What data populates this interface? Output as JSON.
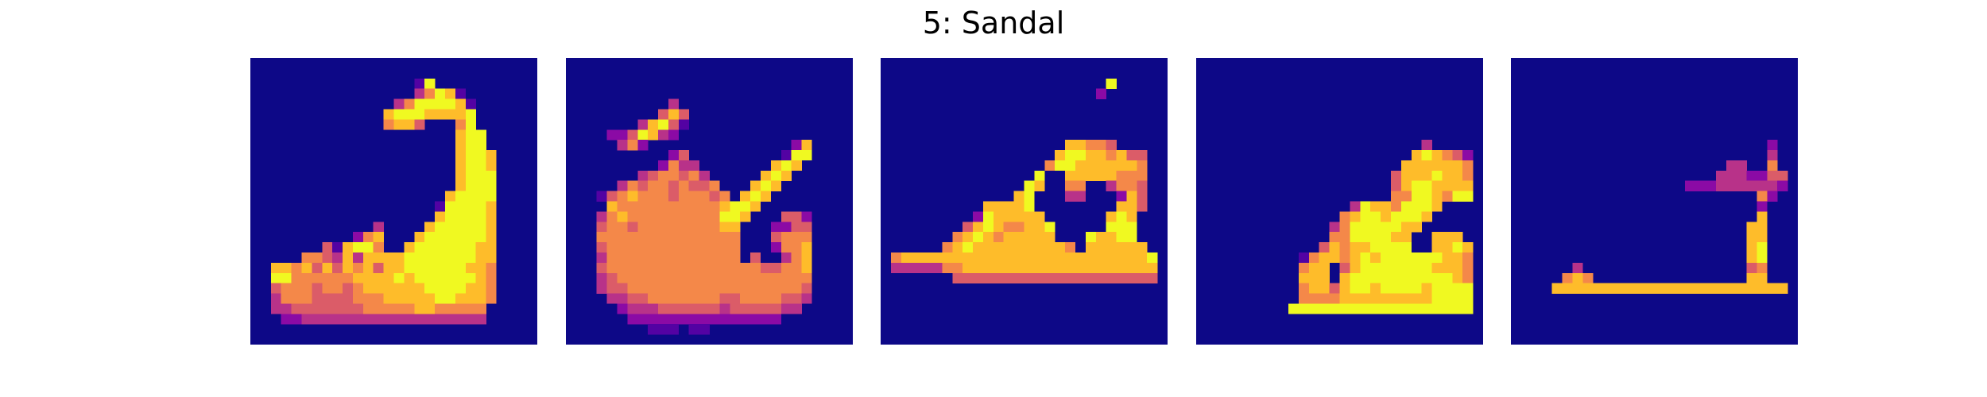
{
  "figure": {
    "title": "5: Sandal"
  },
  "colormap": {
    "name": "plasma",
    "stops": [
      "#0d0887",
      "#5302a3",
      "#8b0aa5",
      "#b83289",
      "#db5c68",
      "#f48849",
      "#febc2a",
      "#f0f921"
    ]
  },
  "images": [
    {
      "grid_size": 28,
      "rows": [
        "0000000000000000000000000000",
        "0000000000000000000000000000",
        "0000000000000000170000000000",
        "0000000000000000357610000000",
        "0000000000000035777761000000",
        "0000000000000677766667000000",
        "0000000000000566400057000000",
        "0000000000000000000067700000",
        "0000000000000000000067700000",
        "0000000000000000000067760000",
        "0000000000000000000067760000",
        "0000000000000000000067770000",
        "0000000000000000000067770000",
        "0000000000000000000677770000",
        "0000000000000000001777760000",
        "0000000000000000006777760000",
        "0000000000003000067777760000",
        "0000000000256000677777760000",
        "0000000416775006777777660000",
        "0000055436366667777777660000",
        "0066564646564667777776650000",
        "0077555555666676777777650000",
        "0045554554566666677776650000",
        "0035554444555666667766650000",
        "0033444444455555665555500000",
        "0002233333333333333333300000",
        "0000000000000000000000000000",
        "0000000000000000000000000000"
      ]
    },
    {
      "grid_size": 28,
      "rows": [
        "0000000000000000000000000000",
        "0000000000000000000000000000",
        "0000000000000000000000000000",
        "0000000000000000000000000000",
        "0000000000300000000000000000",
        "0000000004640000000000000000",
        "0000000367410000000000000000",
        "0000224763200000000000000000",
        "0000035200000000000000260000",
        "0000000000240000000001770000",
        "0000000002533000000067600000",
        "0000000345545300000676000000",
        "0000035455454450006760000000",
        "0001456555455545067600000000",
        "0000655555555556776000000000",
        "0003565555555557760004420000",
        "0004554555555556600022440000",
        "0005555555555555500045550000",
        "0004555555555555500025560000",
        "0003555555555555504003560000",
        "0004555555555555555445560000",
        "0003455555555555555555550000",
        "0003445555555555555555540000",
        "0000334455555554455554430000",
        "0000023334444443444443300000",
        "0000002222222222222220000000",
        "0000000011101100000000000000",
        "0000000000000000000000000000"
      ]
    },
    {
      "grid_size": 28,
      "rows": [
        "0000000000000000000000000000",
        "0000000000000000000000000000",
        "0000000000000000000000700000",
        "0000000000000000000002000000",
        "0000000000000000000000000000",
        "0000000000000000000000000000",
        "0000000000000000000000000000",
        "0000000000000000000000000000",
        "0000000000000000006655400000",
        "0000000000000000067766564400",
        "0000000000000000577666666500",
        "0000000000000007006666655500",
        "0000000000000076005500355400",
        "0000000000000670003300026400",
        "0000000000666670000000066400",
        "0000000002766666000000676000",
        "0000000046765566700000777000",
        "0000000567656666600076677000",
        "0000005676666666665066666600",
        "0566666666666666666666666670",
        "0333335566666666666666666660",
        "0000000444444444444444444440",
        "0000000000000000000000000000",
        "0000000000000000000000000000",
        "0000000000000000000000000000",
        "0000000000000000000000000000",
        "0000000000000000000000000000",
        "0000000000000000000000000000"
      ]
    },
    {
      "grid_size": 28,
      "rows": [
        "0000000000000000000000000000",
        "0000000000000000000000000000",
        "0000000000000000000000000000",
        "0000000000000000000000000000",
        "0000000000000000000000000000",
        "0000000000000000000000000000",
        "0000000000000000000000000000",
        "0000000000000000000000000000",
        "0000000000000000000000300000",
        "0000000000000000000006765420",
        "0000000000000000000066666650",
        "0000000000000000000466676650",
        "0000000000000000000467766660",
        "0000000000000000000557765770",
        "0000000000000003766577760000",
        "0000000000000056776777600000",
        "0000000000000357777766000000",
        "0000000000000557777660066600",
        "0000000000004656677770066760",
        "0000000000156656767777776650",
        "0000000000566046777777766650",
        "0000000000666067777777777650",
        "0000000000566467767777677770",
        "0000000000555566666666677770",
        "0000000007777777777777777770",
        "0000000000000000000000000000",
        "0000000000000000000000000000",
        "0000000000000000000000000000"
      ]
    },
    {
      "grid_size": 28,
      "rows": [
        "0000000000000000000000000000",
        "0000000000000000000000000000",
        "0000000000000000000000000000",
        "0000000000000000000000000000",
        "0000000000000000000000000000",
        "0000000000000000000000000000",
        "0000000000000000000000000000",
        "0000000000000000000000000000",
        "0000000000000000000000000200",
        "0000000000000000000000000300",
        "0000000000000000000003300500",
        "0000000000000000000033322440",
        "0000000000000000022233333320",
        "0000000000000000000000005200",
        "0000000000000000000000002000",
        "0000000000000000000000006000",
        "0000000000000000000000066000",
        "0000000000000000000000066000",
        "0000000000000000000000067000",
        "0000000000000000000000067000",
        "0000003000000000000000045000",
        "0000056500000000000000066000",
        "0000666666666666666666666660",
        "0000000000000000000000000000",
        "0000000000000000000000000000",
        "0000000000000000000000000000",
        "0000000000000000000000000000",
        "0000000000000000000000000000"
      ]
    }
  ]
}
